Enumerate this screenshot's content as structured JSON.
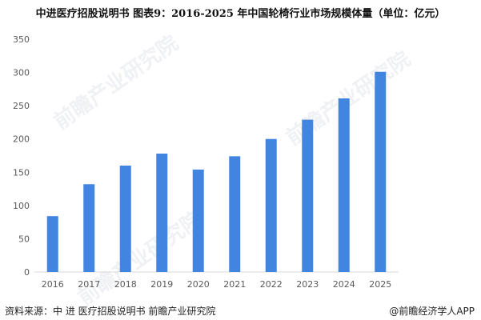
{
  "title": "中进医疗招股说明书  图表9：2016-2025 年中国轮椅行业市场规模体量（单位：亿元）",
  "source": "资料来源：中 进 医疗招股说明书  前瞻产业研究院",
  "brand": "@前瞻经济学人APP",
  "watermark": "前瞻产业研究院",
  "colors": {
    "bar": "#4285E0",
    "axis": "#d9d9d9",
    "text": "#595959"
  },
  "chart_data": {
    "type": "bar",
    "title": "2016-2025 年中国轮椅行业市场规模体量（单位：亿元）",
    "categories": [
      "2016",
      "2017",
      "2018",
      "2019",
      "2020",
      "2021",
      "2022",
      "2023",
      "2024",
      "2025"
    ],
    "values": [
      84,
      132,
      160,
      178,
      154,
      174,
      200,
      229,
      261,
      301
    ],
    "ylim": [
      0,
      350
    ],
    "yticks": [
      0,
      50,
      100,
      150,
      200,
      250,
      300,
      350
    ],
    "grid": false,
    "legend": "none"
  }
}
